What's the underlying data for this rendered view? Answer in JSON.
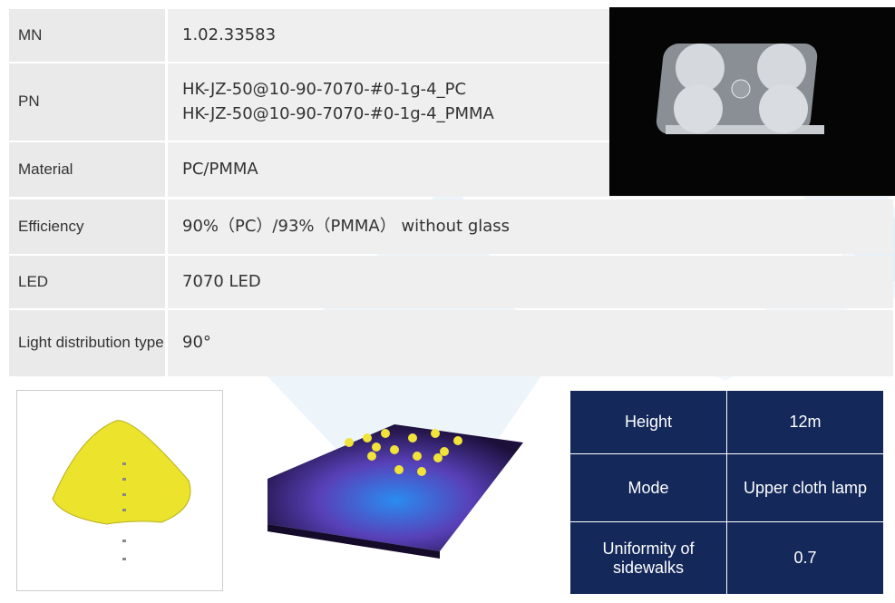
{
  "spec_table": {
    "rows": [
      {
        "label": "MN",
        "values": [
          "1.02.33583"
        ]
      },
      {
        "label": "PN",
        "values": [
          "HK-JZ-50@10-90-7070-#0-1g-4_PC",
          "HK-JZ-50@10-90-7070-#0-1g-4_PMMA"
        ]
      },
      {
        "label": "Material",
        "values": [
          "PC/PMMA"
        ]
      },
      {
        "label": "Efficiency",
        "values": [
          "90%（PC）/93%（PMMA） without glass"
        ]
      },
      {
        "label": "LED",
        "values": [
          "7070 LED"
        ]
      },
      {
        "label": "Light distribution type",
        "values": [
          "90°"
        ]
      }
    ]
  },
  "conditions_table": {
    "rows": [
      {
        "label": "Height",
        "value": "12m"
      },
      {
        "label": "Mode",
        "value": "Upper cloth lamp"
      },
      {
        "label": "Uniformity of sidewalks",
        "value": "0.7"
      }
    ]
  }
}
